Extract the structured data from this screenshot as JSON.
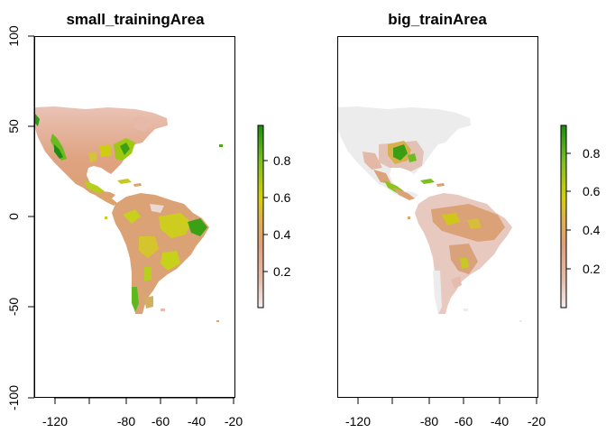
{
  "maps": [
    {
      "title": "small_trainingArea",
      "x_ticks": [
        "-120",
        "-80",
        "-60",
        "-40",
        "-20"
      ],
      "y_ticks": [
        "100",
        "50",
        "0",
        "-50",
        "-100"
      ],
      "legend_ticks": [
        "0.8",
        "0.6",
        "0.4",
        "0.2"
      ],
      "variant": "small"
    },
    {
      "title": "big_trainArea",
      "x_ticks": [
        "-120",
        "-80",
        "-60",
        "-40",
        "-20"
      ],
      "y_ticks": [],
      "legend_ticks": [
        "0.8",
        "0.6",
        "0.4",
        "0.2"
      ],
      "variant": "big"
    }
  ],
  "colors": {
    "ramp": [
      "#f2f2f2",
      "#e9c3b4",
      "#dfa586",
      "#d9a066",
      "#d6b240",
      "#cfd200",
      "#a8cf1a",
      "#6cbd22",
      "#2e9b14",
      "#118a0a"
    ],
    "background_land_big": "#ececec",
    "axis": "#000000"
  }
}
